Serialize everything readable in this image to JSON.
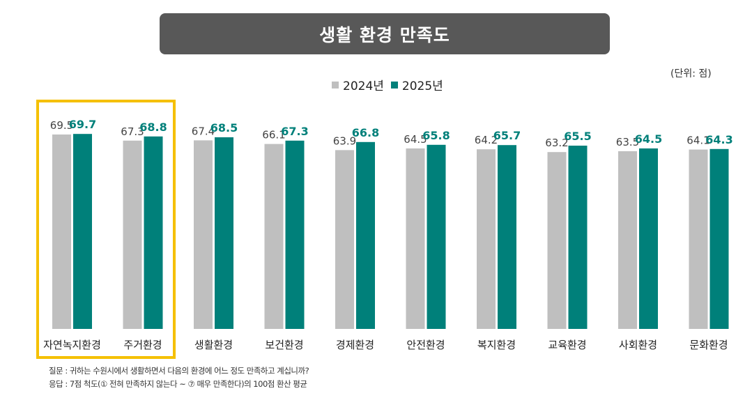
{
  "title": "생활 환경 만족도",
  "unit": "(단위: 점)",
  "legend": [
    {
      "label": "2024년",
      "color": "#BFBFBF"
    },
    {
      "label": "2025년",
      "color": "#00807A"
    }
  ],
  "footnote": {
    "question": "질문 : 귀하는 수원시에서 생활하면서 다음의 환경에 어느 정도 만족하고 계십니까?",
    "answer": "응답 : 7점 척도(① 전혀 만족하지 않는다 ~ ⑦ 매우 만족한다)의 100점 환산 평균"
  },
  "chart_data": {
    "type": "bar",
    "title": "생활 환경 만족도",
    "categories": [
      "자연녹지환경",
      "주거환경",
      "생활환경",
      "보건환경",
      "경제환경",
      "안전환경",
      "복지환경",
      "교육환경",
      "사회환경",
      "문화환경"
    ],
    "series": [
      {
        "name": "2024년",
        "color": "#BFBFBF",
        "values": [
          69.5,
          67.3,
          67.4,
          66.1,
          63.9,
          64.5,
          64.2,
          63.2,
          63.5,
          64.1
        ]
      },
      {
        "name": "2025년",
        "color": "#00807A",
        "values": [
          69.7,
          68.8,
          68.5,
          67.3,
          66.8,
          65.8,
          65.7,
          65.5,
          64.5,
          64.3
        ]
      }
    ],
    "highlighted_categories": [
      "자연녹지환경",
      "주거환경"
    ],
    "highlight_color": "#F5C000",
    "legend_position": "top-center",
    "grid": false
  }
}
